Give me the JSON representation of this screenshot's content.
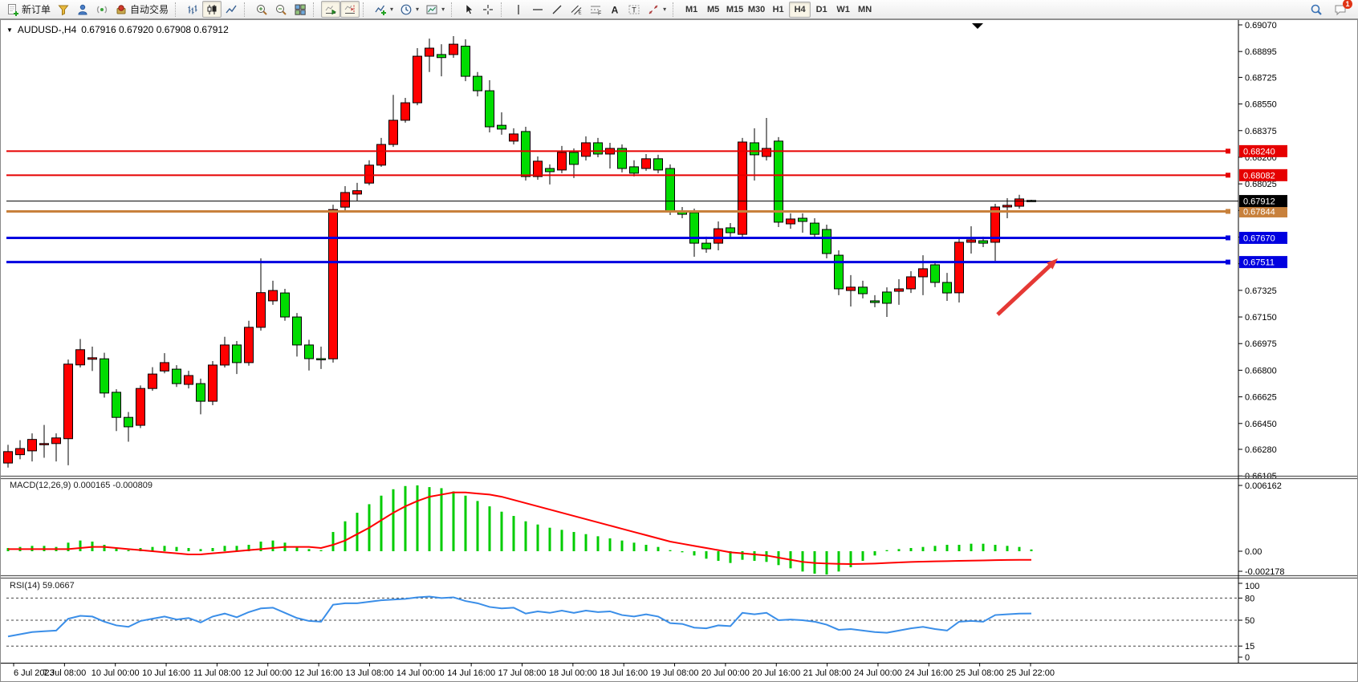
{
  "title": {
    "symbol": "AUDUSD-,H4",
    "ohlc": "0.67916 0.67920 0.67908 0.67912"
  },
  "toolbar": {
    "buttons": [
      {
        "name": "new-order",
        "icon": "doc-plus",
        "label": "新订单"
      },
      {
        "name": "metaeditor",
        "icon": "funnel"
      },
      {
        "name": "market-profile",
        "icon": "person"
      },
      {
        "name": "signals",
        "icon": "signal"
      },
      {
        "name": "auto-trading",
        "icon": "autotrade",
        "label": "自动交易"
      },
      {
        "sep": true
      },
      {
        "name": "bar-chart-mode",
        "icon": "bars"
      },
      {
        "name": "candle-chart-mode",
        "icon": "candles",
        "active": true
      },
      {
        "name": "line-chart-mode",
        "icon": "linechart"
      },
      {
        "sep": true
      },
      {
        "name": "zoom-in",
        "icon": "zoom-in"
      },
      {
        "name": "zoom-out",
        "icon": "zoom-out"
      },
      {
        "name": "tile-windows",
        "icon": "tiles"
      },
      {
        "sep": true
      },
      {
        "name": "auto-scroll",
        "icon": "autoscroll",
        "active": true
      },
      {
        "name": "chart-shift",
        "icon": "chartshift",
        "active": true
      },
      {
        "sep": true
      },
      {
        "name": "indicators",
        "icon": "indicator-plus",
        "dropdown": true
      },
      {
        "name": "periods",
        "icon": "clock",
        "dropdown": true
      },
      {
        "name": "templates",
        "icon": "template",
        "dropdown": true
      },
      {
        "sep": true
      },
      {
        "name": "cursor-tool",
        "icon": "cursor"
      },
      {
        "name": "crosshair-tool",
        "icon": "crosshair"
      },
      {
        "sep": true
      },
      {
        "name": "vertical-line-tool",
        "icon": "vline"
      },
      {
        "name": "horizontal-line-tool",
        "icon": "hline"
      },
      {
        "name": "trendline-tool",
        "icon": "trendline"
      },
      {
        "name": "channel-tool",
        "icon": "channel"
      },
      {
        "name": "fibonacci-tool",
        "icon": "fibo"
      },
      {
        "name": "text-tool",
        "icon": "text-a"
      },
      {
        "name": "text-label-tool",
        "icon": "label-t"
      },
      {
        "name": "arrows-tool",
        "icon": "arrows",
        "dropdown": true
      },
      {
        "sep": true
      }
    ],
    "timeframes": [
      {
        "label": "M1"
      },
      {
        "label": "M5"
      },
      {
        "label": "M15"
      },
      {
        "label": "M30"
      },
      {
        "label": "H1"
      },
      {
        "label": "H4",
        "active": true
      },
      {
        "label": "D1"
      },
      {
        "label": "W1"
      },
      {
        "label": "MN"
      }
    ],
    "right": [
      {
        "name": "search",
        "icon": "magnifier"
      },
      {
        "name": "chat",
        "icon": "chat",
        "badge": "1"
      }
    ]
  },
  "chart_data": {
    "type": "candlestick",
    "symbol": "AUDUSD-",
    "timeframe": "H4",
    "ohlc_display": {
      "open": "0.67916",
      "high": "0.67920",
      "low": "0.67908",
      "close": "0.67912"
    },
    "colors": {
      "bull": "#ff0000",
      "bear": "#00dc00",
      "wick": "#000000",
      "bid_line": "#000000",
      "macd_hist": "#00cc00",
      "macd_signal": "#ff0000",
      "rsi_line": "#3a8ee8",
      "resistance": "#e60000",
      "pivot": "#c8813c",
      "support": "#0000e0",
      "arrow": "#e53935"
    },
    "price_axis_ticks": [
      "0.69070",
      "0.68895",
      "0.68725",
      "0.68550",
      "0.68375",
      "0.68200",
      "0.68025",
      "0.67850",
      "0.67675",
      "0.67500",
      "0.67325",
      "0.67150",
      "0.66975",
      "0.66800",
      "0.66625",
      "0.66450",
      "0.66280",
      "0.66105"
    ],
    "horizontal_lines": [
      {
        "price": 0.6824,
        "label": "0.68240",
        "color": "#e60000",
        "width": 2
      },
      {
        "price": 0.68082,
        "label": "0.68082",
        "color": "#e60000",
        "width": 2
      },
      {
        "price": 0.67844,
        "label": "0.67844",
        "color": "#c8813c",
        "width": 3
      },
      {
        "price": 0.6767,
        "label": "0.67670",
        "color": "#0000e0",
        "width": 3
      },
      {
        "price": 0.67511,
        "label": "0.67511",
        "color": "#0000e0",
        "width": 3
      }
    ],
    "bid_line": {
      "price": 0.67912,
      "label": "0.67912",
      "color": "#000000"
    },
    "x_axis_labels": [
      "6 Jul 2023",
      "7 Jul 08:00",
      "10 Jul 00:00",
      "10 Jul 16:00",
      "11 Jul 08:00",
      "12 Jul 00:00",
      "12 Jul 16:00",
      "13 Jul 08:00",
      "14 Jul 00:00",
      "14 Jul 16:00",
      "17 Jul 08:00",
      "18 Jul 00:00",
      "18 Jul 16:00",
      "19 Jul 08:00",
      "20 Jul 00:00",
      "20 Jul 16:00",
      "21 Jul 08:00",
      "24 Jul 00:00",
      "24 Jul 16:00",
      "25 Jul 08:00",
      "25 Jul 22:00"
    ],
    "candles": [
      [
        0.6619,
        0.6631,
        0.6616,
        0.66265
      ],
      [
        0.66245,
        0.6634,
        0.66215,
        0.66285
      ],
      [
        0.6627,
        0.66385,
        0.662,
        0.66345
      ],
      [
        0.66312,
        0.6644,
        0.66225,
        0.66318
      ],
      [
        0.66318,
        0.66385,
        0.662,
        0.66355
      ],
      [
        0.6635,
        0.6687,
        0.66175,
        0.6684
      ],
      [
        0.66835,
        0.67005,
        0.66818,
        0.66935
      ],
      [
        0.66872,
        0.66955,
        0.66795,
        0.66882
      ],
      [
        0.66875,
        0.66915,
        0.6662,
        0.6665
      ],
      [
        0.66655,
        0.66675,
        0.664,
        0.6649
      ],
      [
        0.6649,
        0.66525,
        0.6633,
        0.66428
      ],
      [
        0.66438,
        0.667,
        0.6642,
        0.6668
      ],
      [
        0.6668,
        0.6682,
        0.66665,
        0.66775
      ],
      [
        0.66795,
        0.66912,
        0.6678,
        0.6685
      ],
      [
        0.66807,
        0.66833,
        0.6669,
        0.66712
      ],
      [
        0.66707,
        0.66796,
        0.6668,
        0.66765
      ],
      [
        0.66712,
        0.66745,
        0.6651,
        0.66596
      ],
      [
        0.66596,
        0.6686,
        0.6657,
        0.66834
      ],
      [
        0.66834,
        0.6702,
        0.66818,
        0.66966
      ],
      [
        0.66966,
        0.66992,
        0.66775,
        0.6685
      ],
      [
        0.6685,
        0.67125,
        0.6683,
        0.67082
      ],
      [
        0.67082,
        0.67535,
        0.6706,
        0.6731
      ],
      [
        0.67256,
        0.67388,
        0.6723,
        0.67324
      ],
      [
        0.67308,
        0.67335,
        0.67125,
        0.6715
      ],
      [
        0.6715,
        0.67176,
        0.6689,
        0.66966
      ],
      [
        0.66966,
        0.67,
        0.66798,
        0.66876
      ],
      [
        0.66876,
        0.66955,
        0.66808,
        0.6687
      ],
      [
        0.66875,
        0.67888,
        0.6685,
        0.67856
      ],
      [
        0.67872,
        0.6801,
        0.67852,
        0.67968
      ],
      [
        0.67958,
        0.68032,
        0.67915,
        0.6798
      ],
      [
        0.6803,
        0.6818,
        0.68016,
        0.68148
      ],
      [
        0.68148,
        0.68327,
        0.68137,
        0.68284
      ],
      [
        0.68284,
        0.6861,
        0.68268,
        0.68443
      ],
      [
        0.68443,
        0.6859,
        0.68427,
        0.68558
      ],
      [
        0.68558,
        0.68917,
        0.68542,
        0.68864
      ],
      [
        0.68864,
        0.6898,
        0.6876,
        0.68917
      ],
      [
        0.68875,
        0.68943,
        0.68732,
        0.68855
      ],
      [
        0.68875,
        0.68996,
        0.68854,
        0.68943
      ],
      [
        0.6893,
        0.68975,
        0.687,
        0.68732
      ],
      [
        0.68732,
        0.6876,
        0.686,
        0.68637
      ],
      [
        0.68637,
        0.68706,
        0.68363,
        0.684
      ],
      [
        0.6841,
        0.68495,
        0.68348,
        0.68385
      ],
      [
        0.68306,
        0.6839,
        0.68284,
        0.68353
      ],
      [
        0.68369,
        0.684,
        0.68047,
        0.68073
      ],
      [
        0.68073,
        0.68205,
        0.68052,
        0.68174
      ],
      [
        0.68126,
        0.68153,
        0.68021,
        0.68105
      ],
      [
        0.68116,
        0.68274,
        0.68095,
        0.68232
      ],
      [
        0.68232,
        0.68258,
        0.68063,
        0.68153
      ],
      [
        0.68206,
        0.68337,
        0.68179,
        0.68295
      ],
      [
        0.68295,
        0.68327,
        0.682,
        0.68221
      ],
      [
        0.68221,
        0.68295,
        0.68126,
        0.68258
      ],
      [
        0.68258,
        0.68284,
        0.681,
        0.68126
      ],
      [
        0.68137,
        0.6818,
        0.68074,
        0.68095
      ],
      [
        0.68126,
        0.68221,
        0.68111,
        0.6819
      ],
      [
        0.6819,
        0.68216,
        0.68095,
        0.68116
      ],
      [
        0.68126,
        0.68153,
        0.6782,
        0.67846
      ],
      [
        0.67846,
        0.67873,
        0.67799,
        0.67825
      ],
      [
        0.67836,
        0.67862,
        0.67546,
        0.67635
      ],
      [
        0.67635,
        0.67678,
        0.67572,
        0.67598
      ],
      [
        0.67635,
        0.67778,
        0.67588,
        0.6773
      ],
      [
        0.67736,
        0.67767,
        0.67678,
        0.67704
      ],
      [
        0.67693,
        0.68327,
        0.67667,
        0.683
      ],
      [
        0.68295,
        0.6839,
        0.68047,
        0.68216
      ],
      [
        0.68205,
        0.68458,
        0.68179,
        0.68258
      ],
      [
        0.68306,
        0.68332,
        0.67741,
        0.67773
      ],
      [
        0.67762,
        0.67831,
        0.6773,
        0.67794
      ],
      [
        0.67799,
        0.67831,
        0.67704,
        0.67778
      ],
      [
        0.67767,
        0.67799,
        0.67662,
        0.67693
      ],
      [
        0.67725,
        0.67757,
        0.67535,
        0.67567
      ],
      [
        0.67556,
        0.67588,
        0.67293,
        0.67335
      ],
      [
        0.67324,
        0.67425,
        0.67219,
        0.67346
      ],
      [
        0.67346,
        0.67388,
        0.67272,
        0.67303
      ],
      [
        0.67256,
        0.67293,
        0.67214,
        0.67245
      ],
      [
        0.67314,
        0.67345,
        0.6715,
        0.6724
      ],
      [
        0.67319,
        0.67398,
        0.6723,
        0.67335
      ],
      [
        0.67335,
        0.67451,
        0.67308,
        0.67414
      ],
      [
        0.67414,
        0.67556,
        0.67293,
        0.67467
      ],
      [
        0.67493,
        0.67519,
        0.67346,
        0.67377
      ],
      [
        0.67377,
        0.6744,
        0.67256,
        0.67308
      ],
      [
        0.67309,
        0.67662,
        0.67245,
        0.67641
      ],
      [
        0.67641,
        0.67746,
        0.67567,
        0.67657
      ],
      [
        0.67651,
        0.67678,
        0.67609,
        0.67635
      ],
      [
        0.67641,
        0.67894,
        0.67519,
        0.67873
      ],
      [
        0.67873,
        0.67931,
        0.67799,
        0.67884
      ],
      [
        0.67878,
        0.67953,
        0.67862,
        0.67926
      ],
      [
        0.67916,
        0.6792,
        0.67908,
        0.67912
      ]
    ],
    "macd": {
      "title": "MACD(12,26,9)",
      "values_text": "0.000165 -0.000809",
      "main_last": 0.000165,
      "signal_last": -0.000809,
      "scale_labels": [
        "0.006162",
        "0.00",
        "-0.002178"
      ],
      "histogram": [
        0.0003,
        0.0004,
        0.0005,
        0.0005,
        0.0004,
        0.0008,
        0.001,
        0.0009,
        0.0006,
        0.0003,
        0.0001,
        0.0003,
        0.0004,
        0.0005,
        0.0004,
        0.0003,
        0.0002,
        0.0003,
        0.0005,
        0.0005,
        0.0006,
        0.0009,
        0.001,
        0.0008,
        0.0004,
        0.0002,
        0.0001,
        0.0018,
        0.0028,
        0.0036,
        0.0044,
        0.0052,
        0.0058,
        0.0061,
        0.006162,
        0.006,
        0.0059,
        0.0056,
        0.0052,
        0.0047,
        0.0042,
        0.0037,
        0.0033,
        0.0028,
        0.0025,
        0.0022,
        0.002,
        0.0018,
        0.0016,
        0.0014,
        0.0012,
        0.001,
        0.0008,
        0.0006,
        0.0004,
        0.0001,
        -0.0001,
        -0.0004,
        -0.0007,
        -0.0009,
        -0.0011,
        -0.0008,
        -0.0009,
        -0.001,
        -0.0013,
        -0.0016,
        -0.0019,
        -0.0021,
        -0.002178,
        -0.0019,
        -0.0015,
        -0.0009,
        -0.0004,
        0.0001,
        0.0002,
        0.0003,
        0.0004,
        0.0005,
        0.0006,
        0.0006,
        0.0007,
        0.0007,
        0.0006,
        0.0005,
        0.0004,
        0.000165
      ],
      "signal": [
        0.0002,
        0.0002,
        0.0002,
        0.0002,
        0.0002,
        0.0002,
        0.0003,
        0.0004,
        0.0004,
        0.0003,
        0.0002,
        0.0001,
        0.0,
        -0.0001,
        -0.0002,
        -0.0003,
        -0.0003,
        -0.0002,
        -0.0001,
        0.0,
        0.0001,
        0.0002,
        0.0003,
        0.0004,
        0.0004,
        0.0004,
        0.0003,
        0.0006,
        0.001,
        0.0016,
        0.0022,
        0.0029,
        0.0036,
        0.0042,
        0.0047,
        0.0051,
        0.0053,
        0.0055,
        0.0055,
        0.0054,
        0.0053,
        0.0051,
        0.0048,
        0.0045,
        0.0042,
        0.0039,
        0.0036,
        0.0033,
        0.003,
        0.0027,
        0.0024,
        0.0021,
        0.0018,
        0.0015,
        0.0012,
        0.0009,
        0.0007,
        0.0005,
        0.0003,
        0.0001,
        -0.0001,
        -0.0002,
        -0.0003,
        -0.0004,
        -0.0006,
        -0.0008,
        -0.001,
        -0.0011,
        -0.00115,
        -0.00118,
        -0.0012,
        -0.00118,
        -0.00115,
        -0.0011,
        -0.00105,
        -0.001,
        -0.00098,
        -0.00095,
        -0.00093,
        -0.0009,
        -0.00088,
        -0.00086,
        -0.00084,
        -0.00082,
        -0.00081,
        -0.000809
      ]
    },
    "rsi": {
      "title": "RSI(14)",
      "value_text": "59.0667",
      "last_value": 59.0667,
      "levels": [
        80,
        50,
        15
      ],
      "scale_labels": [
        "100",
        "80",
        "50",
        "15",
        "0"
      ],
      "values": [
        28,
        31,
        34,
        35,
        36,
        52,
        56,
        55,
        48,
        43,
        41,
        49,
        52,
        55,
        51,
        53,
        47,
        55,
        59,
        54,
        61,
        66,
        67,
        60,
        53,
        49,
        48,
        71,
        73,
        73,
        75,
        77,
        78,
        79,
        81,
        82,
        80,
        81,
        76,
        73,
        68,
        66,
        67,
        59,
        62,
        60,
        63,
        60,
        63,
        61,
        62,
        57,
        55,
        58,
        55,
        46,
        45,
        40,
        39,
        43,
        42,
        60,
        58,
        60,
        50,
        51,
        50,
        48,
        44,
        37,
        38,
        36,
        34,
        33,
        36,
        39,
        41,
        38,
        36,
        48,
        49,
        48,
        57,
        58,
        59,
        59.0667
      ]
    },
    "annotations": {
      "arrow": {
        "from": {
          "bar": 82.2,
          "price": 0.67166
        },
        "to": {
          "bar": 87.2,
          "price": 0.67535
        },
        "color": "#e53935"
      }
    }
  }
}
